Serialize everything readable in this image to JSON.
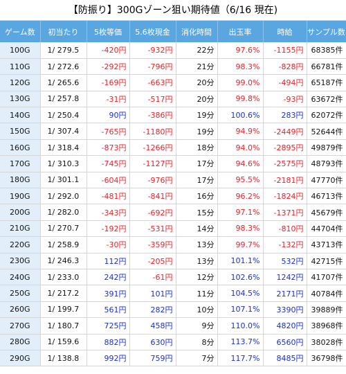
{
  "title": "【防振り】300Gゾーン狙い期待値（6/16 現在)",
  "headers": [
    "ゲーム数",
    "初当たり",
    "5枚等価",
    "5.6枚現金",
    "消化時間",
    "出玉率",
    "時給",
    "サンプル数"
  ],
  "colors": {
    "header_bg": "#5aa6e0",
    "game_col_bg": "#e2eef9",
    "negative": "#e8232a",
    "positive": "#1a2fd6"
  },
  "rows": [
    {
      "game": "100G",
      "hit": "1/ 279.5",
      "eq5": "-420円",
      "cash56": "-932円",
      "time": "22分",
      "rate": "97.6%",
      "hourly": "-1155円",
      "samples": "68385件"
    },
    {
      "game": "110G",
      "hit": "1/ 272.6",
      "eq5": "-292円",
      "cash56": "-796円",
      "time": "21分",
      "rate": "98.3%",
      "hourly": "-828円",
      "samples": "66781件"
    },
    {
      "game": "120G",
      "hit": "1/ 265.6",
      "eq5": "-169円",
      "cash56": "-663円",
      "time": "20分",
      "rate": "99.0%",
      "hourly": "-494円",
      "samples": "65187件"
    },
    {
      "game": "130G",
      "hit": "1/ 257.8",
      "eq5": "-31円",
      "cash56": "-517円",
      "time": "20分",
      "rate": "99.8%",
      "hourly": "-93円",
      "samples": "63672件"
    },
    {
      "game": "140G",
      "hit": "1/ 250.4",
      "eq5": "90円",
      "cash56": "-386円",
      "time": "19分",
      "rate": "100.6%",
      "hourly": "283円",
      "samples": "62072件"
    },
    {
      "game": "150G",
      "hit": "1/ 307.4",
      "eq5": "-765円",
      "cash56": "-1180円",
      "time": "19分",
      "rate": "94.9%",
      "hourly": "-2449円",
      "samples": "52644件"
    },
    {
      "game": "160G",
      "hit": "1/ 318.4",
      "eq5": "-873円",
      "cash56": "-1266円",
      "time": "18分",
      "rate": "94.0%",
      "hourly": "-2895円",
      "samples": "49879件"
    },
    {
      "game": "170G",
      "hit": "1/ 310.3",
      "eq5": "-745円",
      "cash56": "-1127円",
      "time": "17分",
      "rate": "94.6%",
      "hourly": "-2575円",
      "samples": "48793件"
    },
    {
      "game": "180G",
      "hit": "1/ 301.1",
      "eq5": "-604円",
      "cash56": "-976円",
      "time": "17分",
      "rate": "95.5%",
      "hourly": "-2181円",
      "samples": "47770件"
    },
    {
      "game": "190G",
      "hit": "1/ 292.0",
      "eq5": "-481円",
      "cash56": "-841円",
      "time": "16分",
      "rate": "96.2%",
      "hourly": "-1824円",
      "samples": "46713件"
    },
    {
      "game": "200G",
      "hit": "1/ 282.0",
      "eq5": "-343円",
      "cash56": "-692円",
      "time": "15分",
      "rate": "97.1%",
      "hourly": "-1371円",
      "samples": "45679件"
    },
    {
      "game": "210G",
      "hit": "1/ 270.7",
      "eq5": "-192円",
      "cash56": "-531円",
      "time": "14分",
      "rate": "98.3%",
      "hourly": "-810円",
      "samples": "44704件"
    },
    {
      "game": "220G",
      "hit": "1/ 258.9",
      "eq5": "-30円",
      "cash56": "-359円",
      "time": "13分",
      "rate": "99.7%",
      "hourly": "-132円",
      "samples": "43713件"
    },
    {
      "game": "230G",
      "hit": "1/ 246.3",
      "eq5": "112円",
      "cash56": "-205円",
      "time": "13分",
      "rate": "101.1%",
      "hourly": "532円",
      "samples": "42715件"
    },
    {
      "game": "240G",
      "hit": "1/ 233.0",
      "eq5": "242円",
      "cash56": "-61円",
      "time": "12分",
      "rate": "102.6%",
      "hourly": "1242円",
      "samples": "41707件"
    },
    {
      "game": "250G",
      "hit": "1/ 217.2",
      "eq5": "391円",
      "cash56": "101円",
      "time": "11分",
      "rate": "104.5%",
      "hourly": "2171円",
      "samples": "40784件"
    },
    {
      "game": "260G",
      "hit": "1/ 199.7",
      "eq5": "561円",
      "cash56": "282円",
      "time": "10分",
      "rate": "107.1%",
      "hourly": "3390円",
      "samples": "39889件"
    },
    {
      "game": "270G",
      "hit": "1/ 180.7",
      "eq5": "725円",
      "cash56": "458円",
      "time": "9分",
      "rate": "110.0%",
      "hourly": "4820円",
      "samples": "38968件"
    },
    {
      "game": "280G",
      "hit": "1/ 159.6",
      "eq5": "882円",
      "cash56": "630円",
      "time": "8分",
      "rate": "113.7%",
      "hourly": "6560円",
      "samples": "38028件"
    },
    {
      "game": "290G",
      "hit": "1/ 138.8",
      "eq5": "992円",
      "cash56": "759円",
      "time": "7分",
      "rate": "117.7%",
      "hourly": "8485円",
      "samples": "36798件"
    }
  ]
}
